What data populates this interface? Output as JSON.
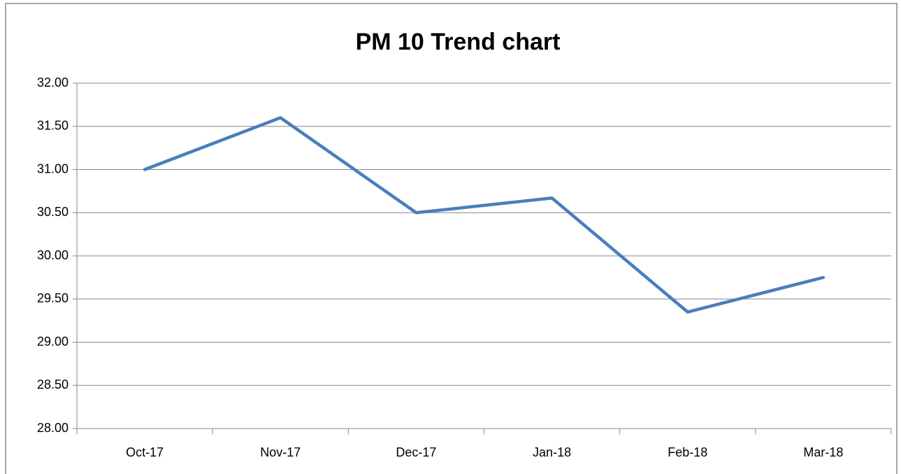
{
  "chart_data": {
    "type": "line",
    "title": "PM 10 Trend chart",
    "categories": [
      "Oct-17",
      "Nov-17",
      "Dec-17",
      "Jan-18",
      "Feb-18",
      "Mar-18"
    ],
    "values": [
      31.0,
      31.6,
      30.5,
      30.67,
      29.35,
      29.75
    ],
    "color": "#4a7ebb",
    "ylim": [
      28,
      32
    ],
    "yticks": [
      {
        "value": 28,
        "label": "28.00"
      },
      {
        "value": 28.5,
        "label": "28.50"
      },
      {
        "value": 29,
        "label": "29.00"
      },
      {
        "value": 29.5,
        "label": "29.50"
      },
      {
        "value": 30,
        "label": "30.00"
      },
      {
        "value": 30.5,
        "label": "30.50"
      },
      {
        "value": 31,
        "label": "31.00"
      },
      {
        "value": 31.5,
        "label": "31.50"
      },
      {
        "value": 32,
        "label": "32.00"
      }
    ],
    "grid": true
  }
}
